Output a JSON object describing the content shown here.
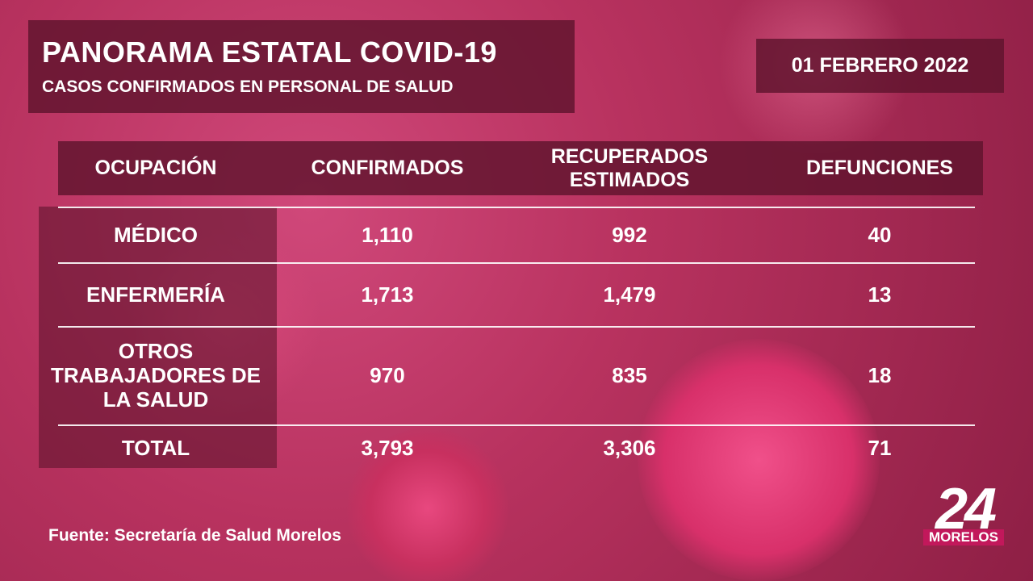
{
  "header": {
    "title": "PANORAMA ESTATAL COVID-19",
    "subtitle": "CASOS CONFIRMADOS EN PERSONAL DE SALUD",
    "date": "01 FEBRERO 2022"
  },
  "table": {
    "columns": [
      "OCUPACIÓN",
      "CONFIRMADOS",
      "RECUPERADOS ESTIMADOS",
      "DEFUNCIONES"
    ],
    "rows": [
      [
        "MÉDICO",
        "1,110",
        "992",
        "40"
      ],
      [
        "ENFERMERÍA",
        "1,713",
        "1,479",
        "13"
      ],
      [
        "OTROS TRABAJADORES DE LA SALUD",
        "970",
        "835",
        "18"
      ],
      [
        "TOTAL",
        "3,793",
        "3,306",
        "71"
      ]
    ]
  },
  "source": "Fuente: Secretaría de Salud Morelos",
  "logo": {
    "number": "24",
    "text": "MORELOS"
  }
}
